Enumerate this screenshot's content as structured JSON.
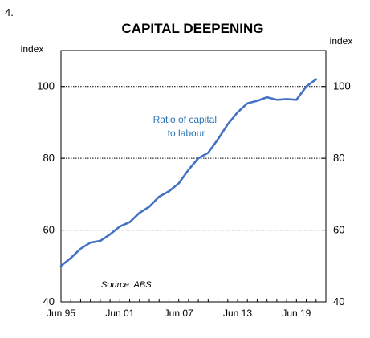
{
  "figure_number": "4.",
  "chart_data": {
    "type": "line",
    "title": "CAPITAL DEEPENING",
    "y_unit_left": "index",
    "y_unit_right": "index",
    "ylim": [
      40,
      110
    ],
    "y_ticks": [
      40,
      60,
      80,
      100
    ],
    "y_ticks_right": [
      40,
      60,
      80,
      100
    ],
    "gridlines": [
      60,
      80,
      100
    ],
    "x_ticks": [
      "Jun 95",
      "Jun 01",
      "Jun 07",
      "Jun 13",
      "Jun 19"
    ],
    "x_tick_years": [
      1995,
      2001,
      2007,
      2013,
      2019
    ],
    "xlim": [
      1995,
      2022
    ],
    "source": "Source: ABS",
    "series": [
      {
        "label_lines": [
          "Ratio of capital",
          "to labour"
        ],
        "color": "#4472c4",
        "x": [
          1995,
          1996,
          1997,
          1998,
          1999,
          2000,
          2001,
          2002,
          2003,
          2004,
          2005,
          2006,
          2007,
          2008,
          2009,
          2010,
          2011,
          2012,
          2013,
          2014,
          2015,
          2016,
          2017,
          2018,
          2019,
          2020,
          2021
        ],
        "values": [
          50.0,
          52.2,
          54.8,
          56.5,
          57.0,
          58.8,
          61.0,
          62.2,
          64.8,
          66.5,
          69.3,
          70.8,
          73.0,
          76.8,
          80.0,
          81.5,
          85.3,
          89.5,
          92.8,
          95.3,
          96.0,
          97.0,
          96.3,
          96.5,
          96.3,
          100.0,
          102.0
        ]
      }
    ]
  }
}
